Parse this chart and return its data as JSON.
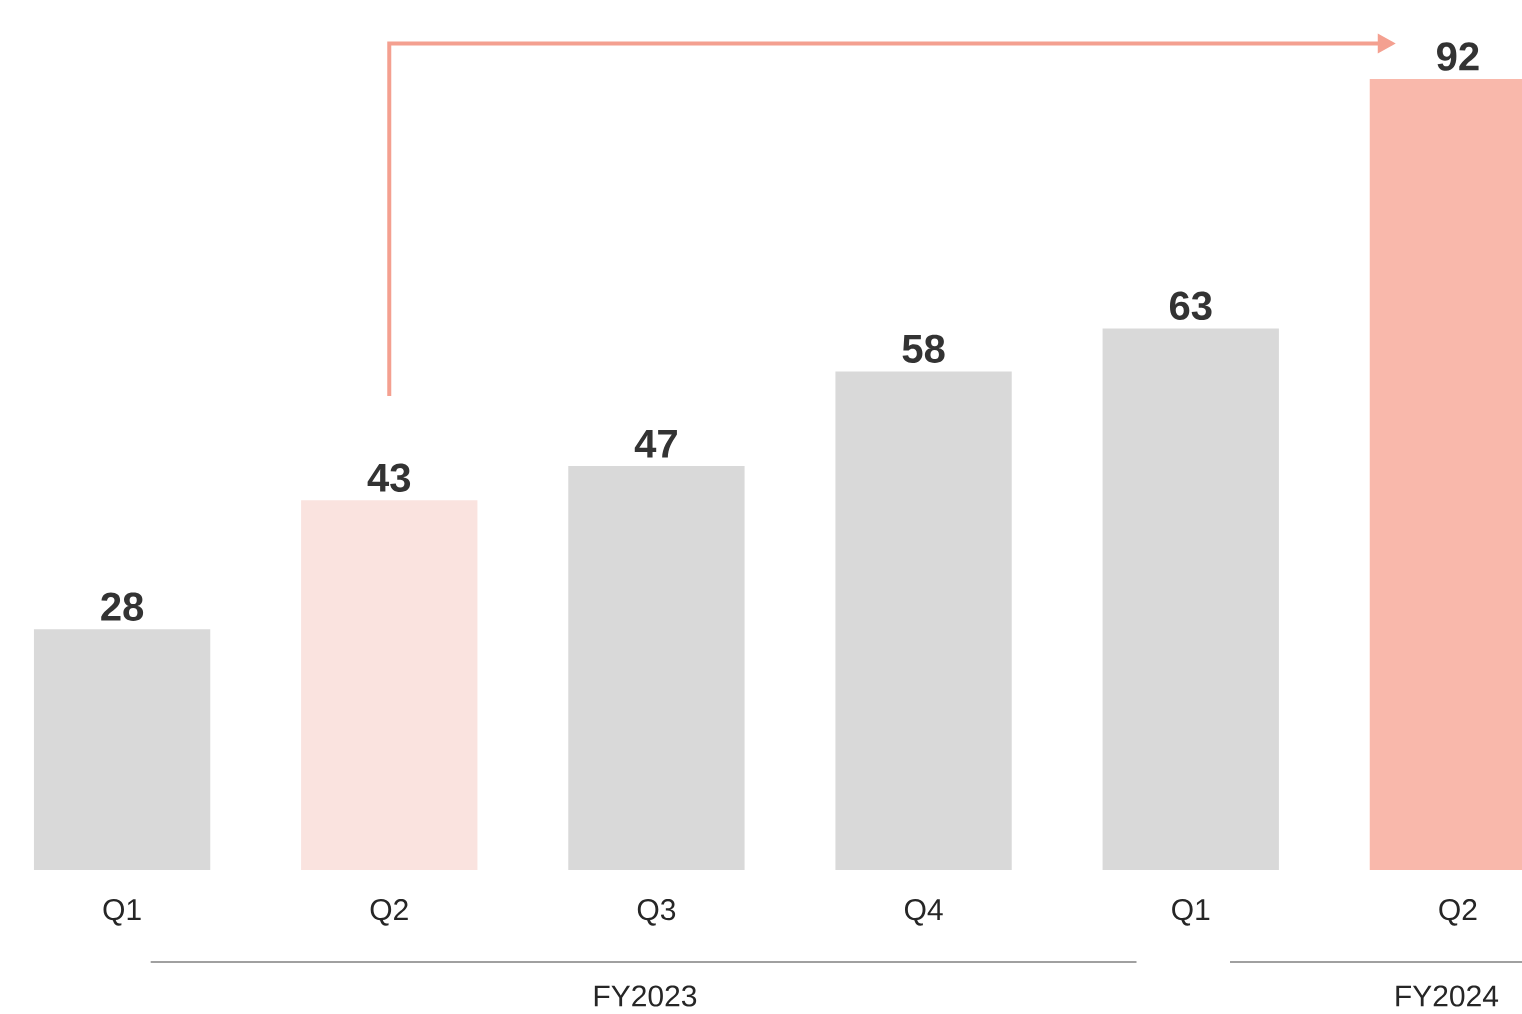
{
  "chart_data": {
    "type": "bar",
    "categories": [
      "Q1",
      "Q2",
      "Q3",
      "Q4",
      "Q1",
      "Q2"
    ],
    "values": [
      28,
      43,
      47,
      58,
      63,
      92
    ],
    "colors": [
      "#d9d9d9",
      "#fae3df",
      "#d9d9d9",
      "#d9d9d9",
      "#d9d9d9",
      "#f9b8ab"
    ],
    "data_labels": true,
    "annotations": [
      "FY2023",
      "FY2024"
    ]
  }
}
